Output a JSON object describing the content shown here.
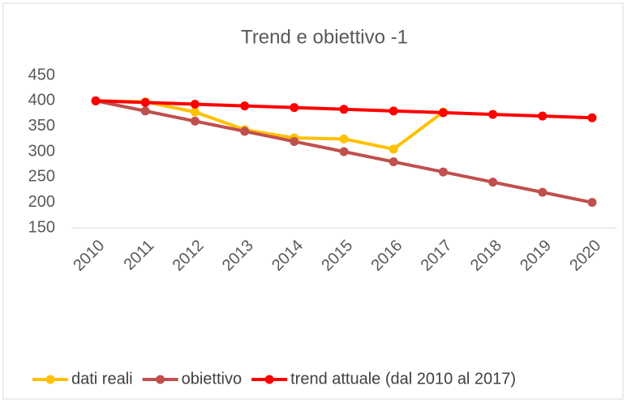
{
  "chart_data": {
    "type": "line",
    "title": "Trend e obiettivo -1",
    "categories": [
      "2010",
      "2011",
      "2012",
      "2013",
      "2014",
      "2015",
      "2016",
      "2017",
      "2018",
      "2019",
      "2020"
    ],
    "series": [
      {
        "name": "dati reali",
        "color": "#FFC000",
        "values": [
          400,
          398,
          378,
          343,
          327,
          325,
          305,
          378,
          null,
          null,
          null
        ]
      },
      {
        "name": "obiettivo",
        "color": "#C0504D",
        "values": [
          400,
          380,
          360,
          340,
          320,
          300,
          280,
          260,
          240,
          220,
          200
        ]
      },
      {
        "name": "trend attuale (dal 2010 al 2017)",
        "color": "#FF0000",
        "values": [
          400,
          396.7,
          393.3,
          390,
          386.7,
          383.3,
          380,
          376.7,
          373.3,
          370,
          366.7
        ]
      }
    ],
    "ylim": [
      150,
      450
    ],
    "yticks": [
      150,
      200,
      250,
      300,
      350,
      400,
      450
    ],
    "grid": false,
    "legend": "bottom"
  }
}
